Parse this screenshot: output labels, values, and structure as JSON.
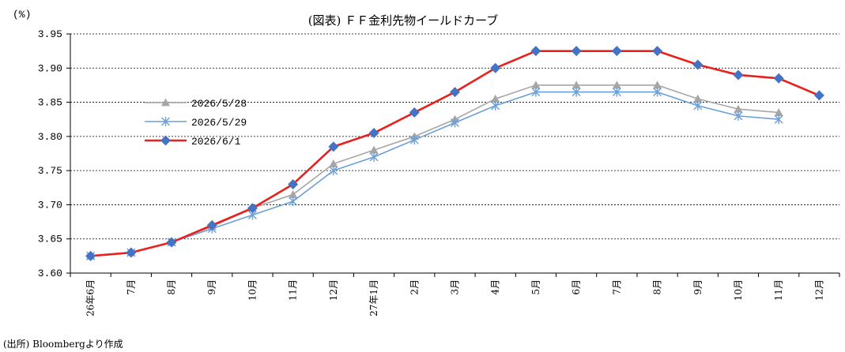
{
  "chart_data": {
    "type": "line",
    "title": "(図表) ＦＦ金利先物イールドカーブ",
    "ylabel": "(%)",
    "xlabel": "",
    "source": "(出所) Bloombergより作成",
    "ylim": [
      3.6,
      3.95
    ],
    "yticks": [
      "3.95",
      "3.90",
      "3.85",
      "3.80",
      "3.75",
      "3.70",
      "3.65",
      "3.60"
    ],
    "categories": [
      "26年6月",
      "7月",
      "8月",
      "9月",
      "10月",
      "11月",
      "12月",
      "27年1月",
      "2月",
      "3月",
      "4月",
      "5月",
      "6月",
      "7月",
      "8月",
      "9月",
      "10月",
      "11月",
      "12月"
    ],
    "grid": true,
    "legend_position": "upper-left",
    "series": [
      {
        "name": "2026/5/28",
        "color": "#a6a6a6",
        "marker": "triangle",
        "values": [
          3.625,
          3.63,
          3.645,
          3.668,
          3.695,
          3.715,
          3.76,
          3.78,
          3.8,
          3.825,
          3.855,
          3.875,
          3.875,
          3.875,
          3.875,
          3.855,
          3.84,
          3.835,
          null
        ]
      },
      {
        "name": "2026/5/29",
        "color": "#6a9fd8",
        "marker": "asterisk",
        "values": [
          3.625,
          3.63,
          3.645,
          3.665,
          3.685,
          3.705,
          3.75,
          3.77,
          3.795,
          3.82,
          3.845,
          3.865,
          3.865,
          3.865,
          3.865,
          3.845,
          3.83,
          3.825,
          null
        ]
      },
      {
        "name": "2026/6/1",
        "color": "#e8201e",
        "marker": "diamond",
        "marker_color": "#4472c4",
        "values": [
          3.625,
          3.63,
          3.645,
          3.67,
          3.695,
          3.73,
          3.785,
          3.805,
          3.835,
          3.865,
          3.9,
          3.925,
          3.925,
          3.925,
          3.925,
          3.905,
          3.89,
          3.885,
          3.86
        ]
      }
    ]
  }
}
